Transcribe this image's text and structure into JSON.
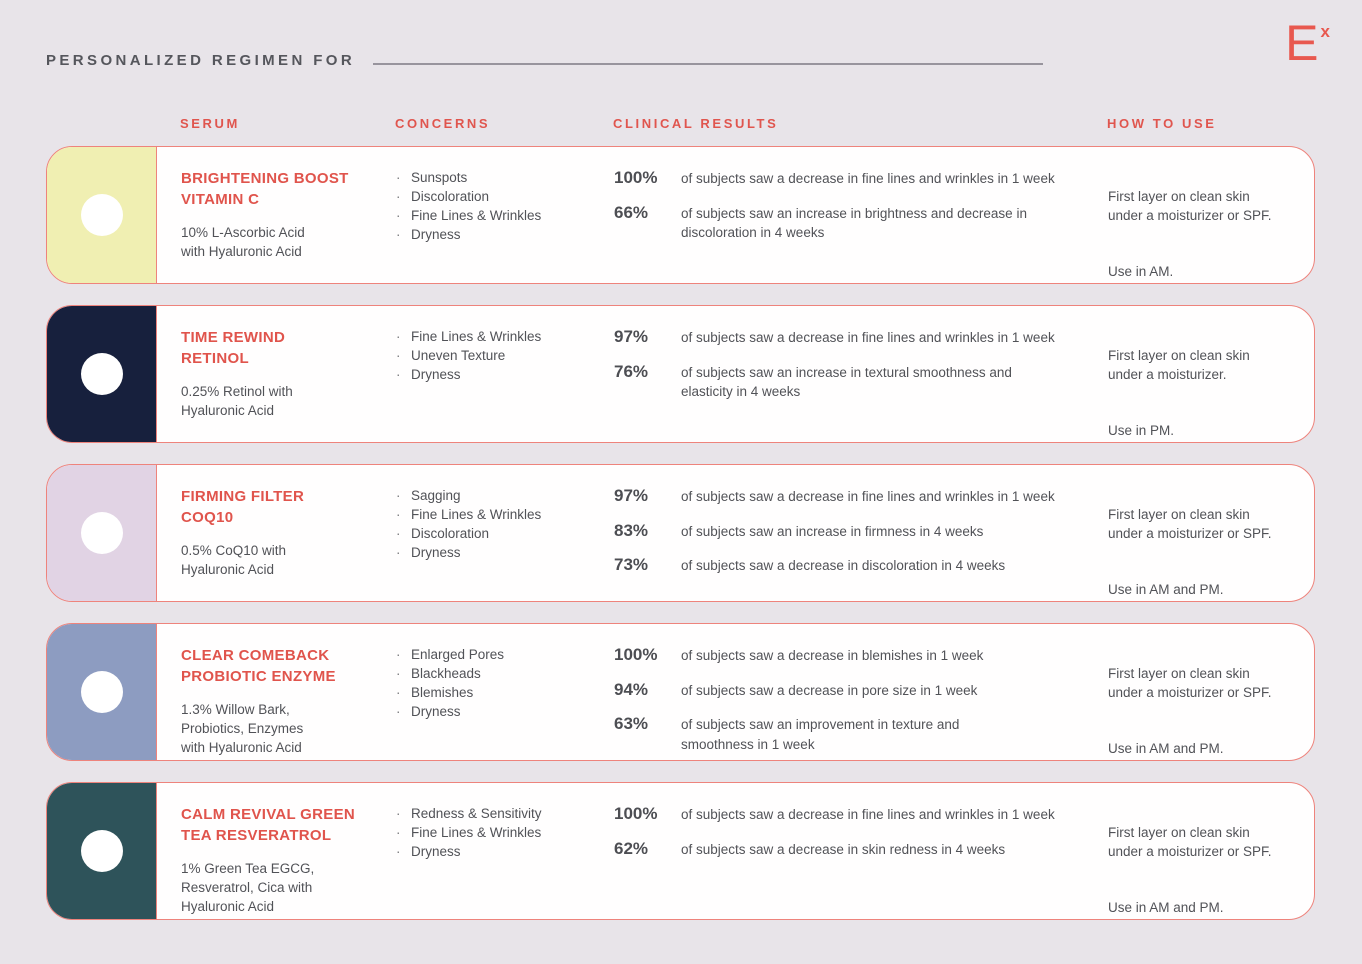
{
  "header": {
    "title": "PERSONALIZED REGIMEN FOR",
    "logo_letter": "E",
    "logo_superscript": "x"
  },
  "columns": {
    "serum": "SERUM",
    "concerns": "CONCERNS",
    "clinical": "CLINICAL RESULTS",
    "how_to_use": "HOW TO USE"
  },
  "bullet_char": "·",
  "colors": {
    "page_background": "#e8e4e9",
    "card_background": "#fffefe",
    "accent_coral": "#e0544c",
    "card_border": "#ee837c",
    "body_text": "#515257",
    "heading_gray": "#55565c"
  },
  "products": [
    {
      "name": [
        "BRIGHTENING BOOST",
        "VITAMIN C"
      ],
      "description": [
        "10% L-Ascorbic Acid",
        "with Hyaluronic Acid"
      ],
      "swatch_color": "#f0efb2",
      "concerns": [
        "Sunspots",
        "Discoloration",
        "Fine Lines & Wrinkles",
        "Dryness"
      ],
      "results": [
        {
          "pct": "100%",
          "text": [
            "of subjects saw a decrease in fine lines and wrinkles in 1 week"
          ]
        },
        {
          "pct": "66%",
          "text": [
            "of subjects saw an increase in brightness and decrease in",
            "discoloration in 4 weeks"
          ]
        }
      ],
      "use_layer": [
        "First layer on clean skin",
        "under a moisturizer or SPF."
      ],
      "use_time": "Use in AM."
    },
    {
      "name": [
        "TIME REWIND",
        "RETINOL"
      ],
      "description": [
        "0.25% Retinol with",
        "Hyaluronic Acid"
      ],
      "swatch_color": "#17203d",
      "concerns": [
        "Fine Lines & Wrinkles",
        "Uneven Texture",
        "Dryness"
      ],
      "results": [
        {
          "pct": "97%",
          "text": [
            "of subjects saw a decrease in fine lines and wrinkles in 1 week"
          ]
        },
        {
          "pct": "76%",
          "text": [
            "of subjects saw an increase in textural smoothness and",
            "elasticity in 4 weeks"
          ]
        }
      ],
      "use_layer": [
        "First layer on clean skin",
        "under a moisturizer."
      ],
      "use_time": "Use in PM."
    },
    {
      "name": [
        "FIRMING FILTER",
        "COQ10"
      ],
      "description": [
        "0.5% CoQ10 with",
        "Hyaluronic Acid"
      ],
      "swatch_color": "#e1d3e4",
      "concerns": [
        "Sagging",
        "Fine Lines & Wrinkles",
        "Discoloration",
        "Dryness"
      ],
      "results": [
        {
          "pct": "97%",
          "text": [
            "of subjects saw a decrease in fine lines and wrinkles in 1 week"
          ]
        },
        {
          "pct": "83%",
          "text": [
            "of subjects saw an increase in firmness in 4 weeks"
          ]
        },
        {
          "pct": "73%",
          "text": [
            "of subjects saw a decrease in discoloration in 4 weeks"
          ]
        }
      ],
      "use_layer": [
        "First layer on clean skin",
        "under a moisturizer or SPF."
      ],
      "use_time": "Use in AM and PM."
    },
    {
      "name": [
        "CLEAR COMEBACK",
        "PROBIOTIC ENZYME"
      ],
      "description": [
        "1.3% Willow Bark,",
        "Probiotics, Enzymes",
        "with Hyaluronic Acid"
      ],
      "swatch_color": "#8d9cc1",
      "concerns": [
        "Enlarged Pores",
        "Blackheads",
        "Blemishes",
        "Dryness"
      ],
      "results": [
        {
          "pct": "100%",
          "text": [
            "of subjects saw a decrease in blemishes in 1 week"
          ]
        },
        {
          "pct": "94%",
          "text": [
            "of subjects saw a decrease in pore size in 1 week"
          ]
        },
        {
          "pct": "63%",
          "text": [
            "of subjects saw an improvement in texture and",
            "smoothness in 1 week"
          ]
        }
      ],
      "use_layer": [
        "First layer on clean skin",
        "under a moisturizer or SPF."
      ],
      "use_time": "Use in AM and PM."
    },
    {
      "name": [
        "CALM REVIVAL GREEN",
        "TEA RESVERATROL"
      ],
      "description": [
        "1% Green Tea EGCG,",
        "Resveratrol, Cica with",
        "Hyaluronic Acid"
      ],
      "swatch_color": "#2e535a",
      "concerns": [
        "Redness & Sensitivity",
        "Fine Lines & Wrinkles",
        "Dryness"
      ],
      "results": [
        {
          "pct": "100%",
          "text": [
            "of subjects saw a decrease in fine lines and wrinkles in 1 week"
          ]
        },
        {
          "pct": "62%",
          "text": [
            "of subjects saw a decrease in skin redness in 4 weeks"
          ]
        }
      ],
      "use_layer": [
        "First layer on clean skin",
        "under a moisturizer or SPF."
      ],
      "use_time": "Use in AM and PM."
    }
  ]
}
